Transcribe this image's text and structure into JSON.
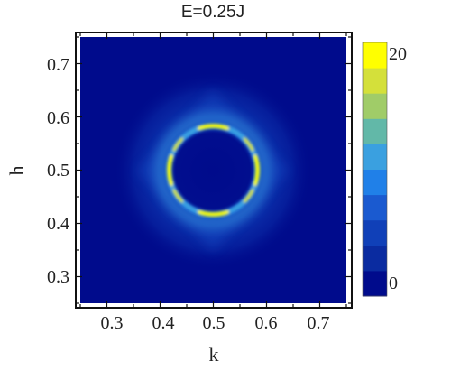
{
  "chart_data": {
    "type": "heatmap",
    "title": "E=0.25J",
    "xlabel": "k",
    "ylabel": "h",
    "xlim": [
      0.25,
      0.75
    ],
    "ylim": [
      0.25,
      0.75
    ],
    "x_ticks": [
      "0.3",
      "0.4",
      "0.5",
      "0.6",
      "0.7"
    ],
    "y_ticks": [
      "0.3",
      "0.4",
      "0.5",
      "0.6",
      "0.7"
    ],
    "colorbar": {
      "min_label": "0",
      "max_label": "20",
      "range": [
        0,
        20
      ],
      "colors": [
        "#000b8c",
        "#0a2ba0",
        "#1040b8",
        "#1a5ad0",
        "#2080e8",
        "#3aa0e0",
        "#62b8a8",
        "#a0cc68",
        "#d4e03a",
        "#ffff00"
      ]
    },
    "features": {
      "center": [
        0.5,
        0.5
      ],
      "ring_radius": 0.083,
      "ring_peak_intensity": 20,
      "background_intensity": 0
    }
  }
}
